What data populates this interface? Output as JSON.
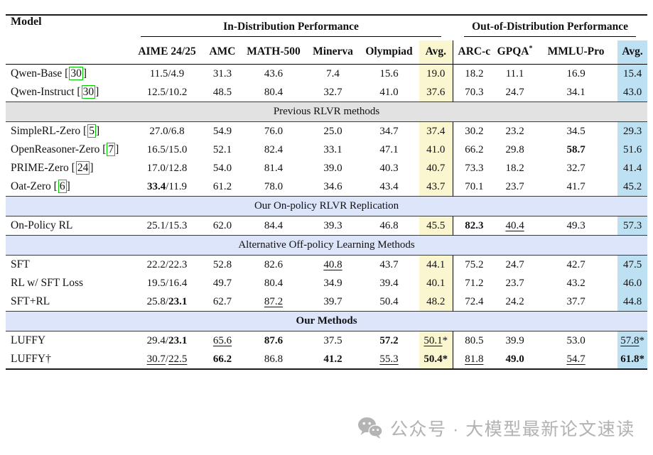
{
  "table": {
    "model_header": "Model",
    "group_headers": [
      {
        "label": "In-Distribution Performance"
      },
      {
        "label": "Out-of-Distribution Performance"
      }
    ],
    "columns": [
      [
        {
          "t": "AIME 24/25"
        }
      ],
      [
        {
          "t": "AMC"
        }
      ],
      [
        {
          "t": "MATH-500"
        }
      ],
      [
        {
          "t": "Minerva"
        }
      ],
      [
        {
          "t": "Olympiad"
        }
      ],
      [
        {
          "t": "Avg."
        }
      ],
      [
        {
          "t": "ARC-c"
        }
      ],
      [
        {
          "t": "GPQA"
        },
        {
          "t": "*",
          "sup": true
        }
      ],
      [
        {
          "t": "MMLU-Pro"
        }
      ],
      [
        {
          "t": "Avg."
        }
      ]
    ],
    "sections": [
      {
        "header": null,
        "rows": [
          {
            "model": [
              {
                "t": "Qwen-Base ["
              },
              {
                "t": "30",
                "cite": true
              },
              {
                "t": "]"
              }
            ],
            "cells": [
              [
                {
                  "t": "11.5/4.9"
                }
              ],
              [
                {
                  "t": "31.3"
                }
              ],
              [
                {
                  "t": "43.6"
                }
              ],
              [
                {
                  "t": "7.4"
                }
              ],
              [
                {
                  "t": "15.6"
                }
              ],
              [
                {
                  "t": "19.0"
                }
              ],
              [
                {
                  "t": "18.2"
                }
              ],
              [
                {
                  "t": "11.1"
                }
              ],
              [
                {
                  "t": "16.9"
                }
              ],
              [
                {
                  "t": "15.4"
                }
              ]
            ]
          },
          {
            "model": [
              {
                "t": "Qwen-Instruct ["
              },
              {
                "t": "30",
                "cite": true
              },
              {
                "t": "]"
              }
            ],
            "cells": [
              [
                {
                  "t": "12.5/10.2"
                }
              ],
              [
                {
                  "t": "48.5"
                }
              ],
              [
                {
                  "t": "80.4"
                }
              ],
              [
                {
                  "t": "32.7"
                }
              ],
              [
                {
                  "t": "41.0"
                }
              ],
              [
                {
                  "t": "37.6"
                }
              ],
              [
                {
                  "t": "70.3"
                }
              ],
              [
                {
                  "t": "24.7"
                }
              ],
              [
                {
                  "t": "34.1"
                }
              ],
              [
                {
                  "t": "43.0"
                }
              ]
            ]
          }
        ]
      },
      {
        "header": {
          "label": "Previous RLVR methods",
          "bg": "gray",
          "bold": false
        },
        "rows": [
          {
            "model": [
              {
                "t": "SimpleRL-Zero ["
              },
              {
                "t": "5",
                "cite": true
              },
              {
                "t": "]"
              }
            ],
            "cells": [
              [
                {
                  "t": "27.0/6.8"
                }
              ],
              [
                {
                  "t": "54.9"
                }
              ],
              [
                {
                  "t": "76.0"
                }
              ],
              [
                {
                  "t": "25.0"
                }
              ],
              [
                {
                  "t": "34.7"
                }
              ],
              [
                {
                  "t": "37.4"
                }
              ],
              [
                {
                  "t": "30.2"
                }
              ],
              [
                {
                  "t": "23.2"
                }
              ],
              [
                {
                  "t": "34.5"
                }
              ],
              [
                {
                  "t": "29.3"
                }
              ]
            ]
          },
          {
            "model": [
              {
                "t": "OpenReasoner-Zero ["
              },
              {
                "t": "7",
                "cite": true
              },
              {
                "t": "]"
              }
            ],
            "cells": [
              [
                {
                  "t": "16.5/15.0"
                }
              ],
              [
                {
                  "t": "52.1"
                }
              ],
              [
                {
                  "t": "82.4"
                }
              ],
              [
                {
                  "t": "33.1"
                }
              ],
              [
                {
                  "t": "47.1"
                }
              ],
              [
                {
                  "t": "41.0"
                }
              ],
              [
                {
                  "t": "66.2"
                }
              ],
              [
                {
                  "t": "29.8"
                }
              ],
              [
                {
                  "t": "58.7",
                  "b": true
                }
              ],
              [
                {
                  "t": "51.6"
                }
              ]
            ]
          },
          {
            "model": [
              {
                "t": "PRIME-Zero ["
              },
              {
                "t": "24",
                "cite": true
              },
              {
                "t": "]"
              }
            ],
            "cells": [
              [
                {
                  "t": "17.0/12.8"
                }
              ],
              [
                {
                  "t": "54.0"
                }
              ],
              [
                {
                  "t": "81.4"
                }
              ],
              [
                {
                  "t": "39.0"
                }
              ],
              [
                {
                  "t": "40.3"
                }
              ],
              [
                {
                  "t": "40.7"
                }
              ],
              [
                {
                  "t": "73.3"
                }
              ],
              [
                {
                  "t": "18.2"
                }
              ],
              [
                {
                  "t": "32.7"
                }
              ],
              [
                {
                  "t": "41.4"
                }
              ]
            ]
          },
          {
            "model": [
              {
                "t": "Oat-Zero ["
              },
              {
                "t": "6",
                "cite": true
              },
              {
                "t": "]"
              }
            ],
            "cells": [
              [
                {
                  "t": "33.4",
                  "b": true
                },
                {
                  "t": "/11.9"
                }
              ],
              [
                {
                  "t": "61.2"
                }
              ],
              [
                {
                  "t": "78.0"
                }
              ],
              [
                {
                  "t": "34.6"
                }
              ],
              [
                {
                  "t": "43.4"
                }
              ],
              [
                {
                  "t": "43.7"
                }
              ],
              [
                {
                  "t": "70.1"
                }
              ],
              [
                {
                  "t": "23.7"
                }
              ],
              [
                {
                  "t": "41.7"
                }
              ],
              [
                {
                  "t": "45.2"
                }
              ]
            ]
          }
        ]
      },
      {
        "header": {
          "label": "Our On-policy RLVR Replication",
          "bg": "lavender",
          "bold": false
        },
        "rows": [
          {
            "model": [
              {
                "t": "On-Policy RL"
              }
            ],
            "cells": [
              [
                {
                  "t": "25.1/15.3"
                }
              ],
              [
                {
                  "t": "62.0"
                }
              ],
              [
                {
                  "t": "84.4"
                }
              ],
              [
                {
                  "t": "39.3"
                }
              ],
              [
                {
                  "t": "46.8"
                }
              ],
              [
                {
                  "t": "45.5"
                }
              ],
              [
                {
                  "t": "82.3",
                  "b": true
                }
              ],
              [
                {
                  "t": "40.4",
                  "u": true
                }
              ],
              [
                {
                  "t": "49.3"
                }
              ],
              [
                {
                  "t": "57.3"
                }
              ]
            ]
          }
        ]
      },
      {
        "header": {
          "label": "Alternative Off-policy Learning Methods",
          "bg": "lavender",
          "bold": false
        },
        "rows": [
          {
            "model": [
              {
                "t": "SFT"
              }
            ],
            "cells": [
              [
                {
                  "t": "22.2/22.3"
                }
              ],
              [
                {
                  "t": "52.8"
                }
              ],
              [
                {
                  "t": "82.6"
                }
              ],
              [
                {
                  "t": "40.8",
                  "u": true
                }
              ],
              [
                {
                  "t": "43.7"
                }
              ],
              [
                {
                  "t": "44.1"
                }
              ],
              [
                {
                  "t": "75.2"
                }
              ],
              [
                {
                  "t": "24.7"
                }
              ],
              [
                {
                  "t": "42.7"
                }
              ],
              [
                {
                  "t": "47.5"
                }
              ]
            ]
          },
          {
            "model": [
              {
                "t": "RL w/ SFT Loss"
              }
            ],
            "cells": [
              [
                {
                  "t": "19.5/16.4"
                }
              ],
              [
                {
                  "t": "49.7"
                }
              ],
              [
                {
                  "t": "80.4"
                }
              ],
              [
                {
                  "t": "34.9"
                }
              ],
              [
                {
                  "t": "39.4"
                }
              ],
              [
                {
                  "t": "40.1"
                }
              ],
              [
                {
                  "t": "71.2"
                }
              ],
              [
                {
                  "t": "23.7"
                }
              ],
              [
                {
                  "t": "43.2"
                }
              ],
              [
                {
                  "t": "46.0"
                }
              ]
            ]
          },
          {
            "model": [
              {
                "t": "SFT+RL"
              }
            ],
            "cells": [
              [
                {
                  "t": "25.8/"
                },
                {
                  "t": "23.1",
                  "b": true
                }
              ],
              [
                {
                  "t": "62.7"
                }
              ],
              [
                {
                  "t": "87.2",
                  "u": true
                }
              ],
              [
                {
                  "t": "39.7"
                }
              ],
              [
                {
                  "t": "50.4"
                }
              ],
              [
                {
                  "t": "48.2"
                }
              ],
              [
                {
                  "t": "72.4"
                }
              ],
              [
                {
                  "t": "24.2"
                }
              ],
              [
                {
                  "t": "37.7"
                }
              ],
              [
                {
                  "t": "44.8"
                }
              ]
            ]
          }
        ]
      },
      {
        "header": {
          "label": "Our Methods",
          "bg": "lavender",
          "bold": true
        },
        "rows": [
          {
            "model": [
              {
                "t": "LUFFY"
              }
            ],
            "cells": [
              [
                {
                  "t": "29.4/"
                },
                {
                  "t": "23.1",
                  "b": true
                }
              ],
              [
                {
                  "t": "65.6",
                  "u": true
                }
              ],
              [
                {
                  "t": "87.6",
                  "b": true
                }
              ],
              [
                {
                  "t": "37.5"
                }
              ],
              [
                {
                  "t": "57.2",
                  "b": true
                }
              ],
              [
                {
                  "t": "50.1",
                  "u": true
                },
                {
                  "t": "*"
                }
              ],
              [
                {
                  "t": "80.5"
                }
              ],
              [
                {
                  "t": "39.9"
                }
              ],
              [
                {
                  "t": "53.0"
                }
              ],
              [
                {
                  "t": "57.8",
                  "u": true
                },
                {
                  "t": "*"
                }
              ]
            ]
          },
          {
            "model": [
              {
                "t": "LUFFY†"
              }
            ],
            "cells": [
              [
                {
                  "t": "30.7",
                  "u": true
                },
                {
                  "t": "/"
                },
                {
                  "t": "22.5",
                  "u": true
                }
              ],
              [
                {
                  "t": "66.2",
                  "b": true
                }
              ],
              [
                {
                  "t": "86.8"
                }
              ],
              [
                {
                  "t": "41.2",
                  "b": true
                }
              ],
              [
                {
                  "t": "55.3",
                  "u": true
                }
              ],
              [
                {
                  "t": "50.4*",
                  "b": true
                }
              ],
              [
                {
                  "t": "81.8",
                  "u": true
                }
              ],
              [
                {
                  "t": "49.0",
                  "b": true
                }
              ],
              [
                {
                  "t": "54.7",
                  "u": true
                }
              ],
              [
                {
                  "t": "61.8*",
                  "b": true
                }
              ]
            ]
          }
        ]
      }
    ]
  },
  "watermark": {
    "icon": "wechat-icon",
    "text": "公众号 · 大模型最新论文速读"
  },
  "colors": {
    "avg_in_highlight": "#faf7d0",
    "avg_out_highlight": "#bde1f2",
    "section_gray": "#e2e2e2",
    "section_lavender": "#dde5fb",
    "citation_green": "#00cc00"
  }
}
